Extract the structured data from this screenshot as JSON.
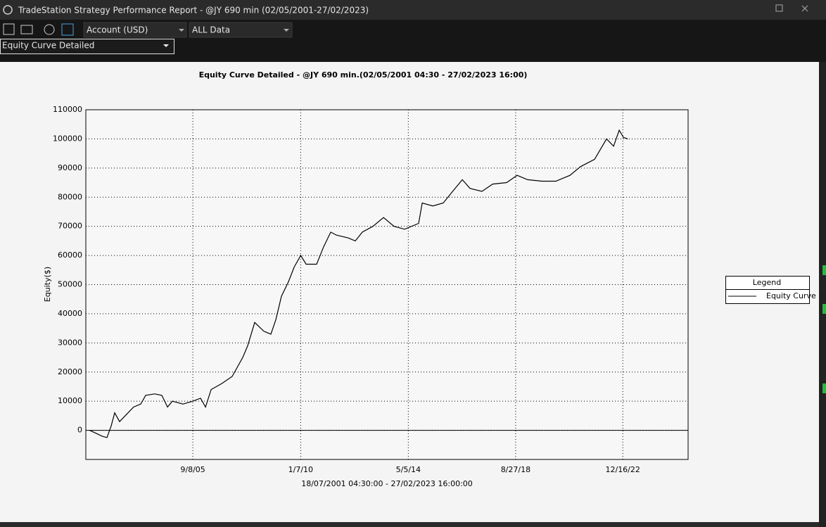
{
  "window": {
    "title": "TradeStation Strategy Performance Report - @JY 690 min (02/05/2001-27/02/2023)"
  },
  "toolbar": {
    "account": "Account (USD)",
    "range": "ALL Data",
    "view": "Equity Curve Detailed"
  },
  "chart_data": {
    "type": "line",
    "title": "Equity Curve Detailed - @JY 690 min.(02/05/2001 04:30 - 27/02/2023 16:00)",
    "x_label": "18/07/2001 04:30:00 - 27/02/2023 16:00:00",
    "y_label": "Equity($)",
    "x": [
      "2001-07-18",
      "2002-01-15",
      "2002-03-28",
      "2002-05-29",
      "2002-07-19",
      "2002-09-29",
      "2002-12-20",
      "2003-04-23",
      "2003-08-05",
      "2003-10-16",
      "2004-02-27",
      "2004-06-10",
      "2004-09-01",
      "2004-11-12",
      "2005-04-16",
      "2005-09-08",
      "2005-12-30",
      "2006-03-13",
      "2006-06-03",
      "2006-11-04",
      "2007-04-08",
      "2007-09-10",
      "2007-11-21",
      "2008-03-03",
      "2008-07-16",
      "2008-10-27",
      "2009-01-08",
      "2009-03-31",
      "2009-07-12",
      "2009-10-03",
      "2010-01-07",
      "2010-03-28",
      "2010-08-29",
      "2010-12-10",
      "2011-03-24",
      "2011-06-14",
      "2011-12-06",
      "2012-03-18",
      "2012-06-30",
      "2012-12-02",
      "2013-05-06",
      "2013-10-08",
      "2014-03-12",
      "2014-10-04",
      "2014-11-25",
      "2015-04-29",
      "2015-09-30",
      "2016-03-04",
      "2016-07-06",
      "2016-10-27",
      "2017-04-20",
      "2017-09-23",
      "2018-04-17",
      "2018-09-18",
      "2019-02-20",
      "2019-09-14",
      "2020-04-08",
      "2020-11-01",
      "2021-04-05",
      "2021-10-28",
      "2022-04-22",
      "2022-08-03",
      "2022-10-24",
      "2022-12-25",
      "2023-02-27"
    ],
    "series": [
      {
        "name": "Equity Curve",
        "color": "#000000",
        "values": [
          0,
          -2000,
          -2500,
          1500,
          6000,
          3000,
          5000,
          8000,
          9000,
          12000,
          12500,
          12000,
          8000,
          10000,
          9000,
          10000,
          11000,
          8000,
          14000,
          16000,
          18500,
          25000,
          29000,
          37000,
          34000,
          33000,
          38000,
          46000,
          51000,
          56000,
          60000,
          57000,
          57000,
          63000,
          68000,
          67000,
          66000,
          65000,
          68000,
          70000,
          73000,
          70000,
          69000,
          71000,
          78000,
          77000,
          78000,
          82500,
          86000,
          83000,
          82000,
          84500,
          85000,
          87500,
          86000,
          85500,
          85500,
          87500,
          90500,
          93000,
          100000,
          97500,
          103000,
          100500,
          100000
        ]
      }
    ],
    "xlim": [
      "2001-05-22",
      "2025-07-31"
    ],
    "xticks": [
      {
        "value": "2005-09-08",
        "label": "9/8/05"
      },
      {
        "value": "2010-01-07",
        "label": "1/7/10"
      },
      {
        "value": "2014-05-05",
        "label": "5/5/14"
      },
      {
        "value": "2018-08-27",
        "label": "8/27/18"
      },
      {
        "value": "2022-12-16",
        "label": "12/16/22"
      }
    ],
    "ylim": [
      -10000,
      110000
    ],
    "yticks": [
      0,
      10000,
      20000,
      30000,
      40000,
      50000,
      60000,
      70000,
      80000,
      90000,
      100000,
      110000
    ],
    "grid": true,
    "legend": "right",
    "legend_title": "Legend"
  }
}
